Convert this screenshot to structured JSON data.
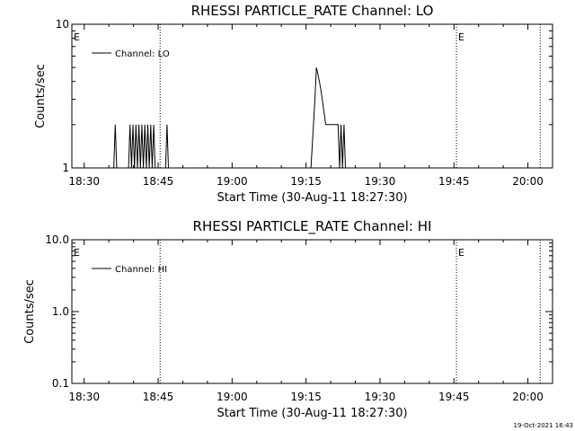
{
  "chart_data": [
    {
      "type": "line",
      "title": "RHESSI PARTICLE_RATE Channel: LO",
      "xlabel": "Start Time (30-Aug-11 18:27:30)",
      "ylabel": "Counts/sec",
      "y_scale": "log",
      "ylim": [
        1,
        10
      ],
      "y_ticks": [
        "1",
        "10"
      ],
      "x_ticks": [
        "18:30",
        "18:45",
        "19:00",
        "19:15",
        "19:30",
        "19:45",
        "20:00"
      ],
      "xlim_minutes": [
        -2.5,
        95
      ],
      "legend": {
        "label": "Channel: LO",
        "placement": "top-left"
      },
      "markers": [
        {
          "label": "E",
          "minute": -2.5,
          "dotted_line": false
        },
        {
          "label": "E",
          "minute": 75.5,
          "dotted_line": true
        }
      ],
      "dotted_lines_minutes": [
        15.4,
        75.5,
        92.5
      ],
      "series": [
        {
          "name": "Channel: LO",
          "points": [
            [
              3,
              1
            ],
            [
              6,
              1
            ],
            [
              6.3,
              2
            ],
            [
              6.6,
              1
            ],
            [
              9,
              1
            ],
            [
              9.3,
              2
            ],
            [
              9.6,
              1
            ],
            [
              9.9,
              2
            ],
            [
              10.2,
              1
            ],
            [
              10.5,
              2
            ],
            [
              10.8,
              1
            ],
            [
              11.1,
              2
            ],
            [
              11.4,
              1
            ],
            [
              11.7,
              2
            ],
            [
              12,
              1
            ],
            [
              12.3,
              2
            ],
            [
              12.6,
              1
            ],
            [
              12.9,
              2
            ],
            [
              13.2,
              1
            ],
            [
              13.5,
              2
            ],
            [
              13.8,
              1
            ],
            [
              14.1,
              2
            ],
            [
              14.4,
              1
            ],
            [
              16.5,
              1
            ],
            [
              16.8,
              2
            ],
            [
              17.1,
              1
            ],
            [
              18,
              1
            ],
            [
              45,
              1
            ],
            [
              46,
              1
            ],
            [
              46.5,
              2
            ],
            [
              46.8,
              3
            ],
            [
              47.1,
              5
            ],
            [
              47.4,
              4.5
            ],
            [
              47.7,
              4
            ],
            [
              48,
              3.5
            ],
            [
              48.3,
              3
            ],
            [
              48.6,
              2.5
            ],
            [
              49,
              2
            ],
            [
              51.5,
              2
            ],
            [
              51.8,
              1
            ],
            [
              52.1,
              2
            ],
            [
              52.4,
              1
            ],
            [
              52.7,
              2
            ],
            [
              53,
              1
            ],
            [
              53.5,
              1
            ]
          ]
        }
      ]
    },
    {
      "type": "line",
      "title": "RHESSI PARTICLE_RATE Channel: HI",
      "xlabel": "Start Time (30-Aug-11 18:27:30)",
      "ylabel": "Counts/sec",
      "y_scale": "log",
      "ylim": [
        0.1,
        10
      ],
      "y_ticks": [
        "0.1",
        "1.0",
        "10.0"
      ],
      "x_ticks": [
        "18:30",
        "18:45",
        "19:00",
        "19:15",
        "19:30",
        "19:45",
        "20:00"
      ],
      "xlim_minutes": [
        -2.5,
        95
      ],
      "legend": {
        "label": "Channel: HI",
        "placement": "top-left"
      },
      "markers": [
        {
          "label": "E",
          "minute": -2.5,
          "dotted_line": false
        },
        {
          "label": "E",
          "minute": 75.5,
          "dotted_line": true
        }
      ],
      "dotted_lines_minutes": [
        15.4,
        75.5,
        92.5
      ],
      "series": [
        {
          "name": "Channel: HI",
          "points": []
        }
      ]
    }
  ],
  "footer": {
    "timestamp": "19-Oct-2021 16:43"
  }
}
